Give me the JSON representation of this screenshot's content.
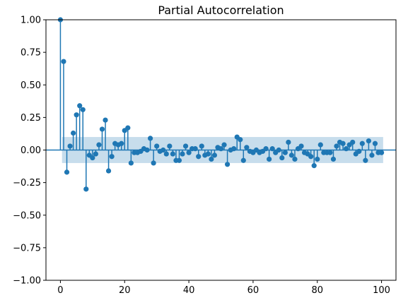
{
  "chart_data": {
    "type": "scatter",
    "subtype": "stem",
    "title": "Partial Autocorrelation",
    "xlabel": "",
    "ylabel": "",
    "xlim": [
      -4.5,
      104.5
    ],
    "ylim": [
      -1.0,
      1.0
    ],
    "xticks": [
      0,
      20,
      40,
      60,
      80,
      100
    ],
    "xtick_labels": [
      "0",
      "20",
      "40",
      "60",
      "80",
      "100"
    ],
    "yticks": [
      -1.0,
      -0.75,
      -0.5,
      -0.25,
      0.0,
      0.25,
      0.5,
      0.75,
      1.0
    ],
    "ytick_labels": [
      "−1.00",
      "−0.75",
      "−0.50",
      "−0.25",
      "0.00",
      "0.25",
      "0.50",
      "0.75",
      "1.00"
    ],
    "grid": false,
    "legend": "none",
    "colors": {
      "stem": "#1f77b4",
      "band": "#1f77b4"
    },
    "confidence_band": {
      "x_range": [
        0.5,
        100.5
      ],
      "upper": 0.1,
      "lower": -0.1
    },
    "series": [
      {
        "x": [
          0,
          1,
          2,
          3,
          4,
          5,
          6,
          7,
          8,
          9,
          10,
          11,
          12,
          13,
          14,
          15,
          16,
          17,
          18,
          19,
          20,
          21,
          22,
          23,
          24,
          25,
          26,
          27,
          28,
          29,
          30,
          31,
          32,
          33,
          34,
          35,
          36,
          37,
          38,
          39,
          40,
          41,
          42,
          43,
          44,
          45,
          46,
          47,
          48,
          49,
          50,
          51,
          52,
          53,
          54,
          55,
          56,
          57,
          58,
          59,
          60,
          61,
          62,
          63,
          64,
          65,
          66,
          67,
          68,
          69,
          70,
          71,
          72,
          73,
          74,
          75,
          76,
          77,
          78,
          79,
          80,
          81,
          82,
          83,
          84,
          85,
          86,
          87,
          88,
          89,
          90,
          91,
          92,
          93,
          94,
          95,
          96,
          97,
          98,
          99,
          100
        ],
        "values": [
          1.0,
          0.68,
          -0.17,
          0.03,
          0.13,
          0.27,
          0.34,
          0.31,
          -0.3,
          -0.04,
          -0.06,
          -0.03,
          0.04,
          0.16,
          0.23,
          -0.16,
          -0.05,
          0.05,
          0.04,
          0.05,
          0.15,
          0.17,
          -0.1,
          -0.02,
          -0.02,
          -0.01,
          0.01,
          0.0,
          0.09,
          -0.1,
          0.03,
          -0.01,
          0.0,
          -0.03,
          0.03,
          -0.03,
          -0.08,
          -0.08,
          -0.03,
          0.03,
          -0.02,
          0.01,
          0.01,
          -0.05,
          0.03,
          -0.04,
          -0.03,
          -0.07,
          -0.04,
          0.02,
          0.01,
          0.04,
          -0.11,
          0.0,
          0.01,
          0.1,
          0.08,
          -0.08,
          0.02,
          -0.01,
          -0.02,
          0.0,
          -0.02,
          -0.01,
          0.01,
          -0.07,
          0.01,
          -0.02,
          0.0,
          -0.06,
          -0.02,
          0.06,
          -0.04,
          -0.07,
          0.01,
          0.03,
          -0.02,
          -0.03,
          -0.05,
          -0.12,
          -0.07,
          0.04,
          -0.02,
          -0.02,
          -0.02,
          -0.07,
          0.03,
          0.06,
          0.05,
          0.01,
          0.04,
          0.06,
          -0.03,
          -0.01,
          0.05,
          -0.08,
          0.07,
          -0.04,
          0.05,
          -0.02,
          -0.02
        ]
      }
    ]
  }
}
